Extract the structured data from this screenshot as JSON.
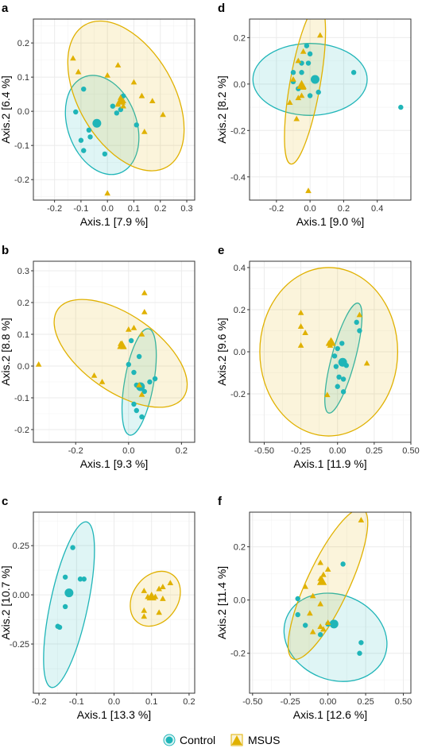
{
  "colors": {
    "control": "#1fb5b8",
    "msus": "#e0b100",
    "grid": "#ebebeb",
    "frame": "#333333"
  },
  "legend": {
    "position": "bottom",
    "items": [
      {
        "label": "Control",
        "shape": "circle"
      },
      {
        "label": "MSUS",
        "shape": "triangle"
      }
    ]
  },
  "chart_data": [
    {
      "type": "scatter",
      "panel_label": "a",
      "xlabel": "Axis.1 [7.9 %]",
      "ylabel": "Axis.2 [6.4 %]",
      "xlim": [
        -0.28,
        0.33
      ],
      "ylim": [
        -0.26,
        0.27
      ],
      "xticks": [
        -0.2,
        -0.1,
        0.0,
        0.1,
        0.2,
        0.3
      ],
      "xticklabels": [
        "-0.2",
        "-0.1",
        "0.0",
        "0.1",
        "0.2",
        "0.3"
      ],
      "yticks": [
        -0.2,
        -0.1,
        0.0,
        0.1,
        0.2
      ],
      "yticklabels": [
        "-0.2",
        "-0.1",
        "0.0",
        "0.1",
        "0.2"
      ],
      "series": [
        {
          "name": "Control",
          "points": [
            [
              -0.12,
              -0.002
            ],
            [
              -0.09,
              0.065
            ],
            [
              -0.1,
              -0.085
            ],
            [
              -0.09,
              -0.115
            ],
            [
              -0.07,
              -0.055
            ],
            [
              -0.01,
              -0.125
            ],
            [
              0.02,
              0.015
            ],
            [
              0.05,
              0.005
            ],
            [
              0.06,
              0.045
            ],
            [
              0.035,
              -0.005
            ],
            [
              0.11,
              -0.04
            ],
            [
              -0.065,
              -0.075
            ]
          ],
          "centroid": [
            -0.04,
            -0.035
          ],
          "ellipse": {
            "center": [
              -0.02,
              -0.04
            ],
            "rx": 0.13,
            "ry": 0.15,
            "angle_deg": -20
          }
        },
        {
          "name": "MSUS",
          "points": [
            [
              -0.13,
              0.155
            ],
            [
              -0.11,
              0.115
            ],
            [
              -0.0,
              0.105
            ],
            [
              0.04,
              0.135
            ],
            [
              0.1,
              0.085
            ],
            [
              0.13,
              0.045
            ],
            [
              0.17,
              0.03
            ],
            [
              0.21,
              -0.01
            ],
            [
              0.14,
              -0.06
            ],
            [
              0.06,
              0.03
            ],
            [
              0.05,
              0.04
            ],
            [
              0.04,
              0.02
            ],
            [
              0.06,
              0.015
            ],
            [
              -0.0,
              -0.24
            ]
          ],
          "centroid": [
            0.05,
            0.03
          ],
          "ellipse": {
            "center": [
              0.07,
              0.045
            ],
            "rx": 0.18,
            "ry": 0.24,
            "angle_deg": -30
          }
        }
      ]
    },
    {
      "type": "scatter",
      "panel_label": "d",
      "xlabel": "Axis.1 [9.0 %]",
      "ylabel": "Axis.2 [8.2 %]",
      "xlim": [
        -0.36,
        0.6
      ],
      "ylim": [
        -0.5,
        0.28
      ],
      "xticks": [
        -0.2,
        0.0,
        0.2,
        0.4
      ],
      "xticklabels": [
        "-0.2",
        "0.0",
        "0.2",
        "0.4"
      ],
      "yticks": [
        -0.4,
        -0.2,
        0.0,
        0.2
      ],
      "yticklabels": [
        "-0.4",
        "-0.2",
        "0.0",
        "0.2"
      ],
      "series": [
        {
          "name": "Control",
          "points": [
            [
              -0.02,
              0.165
            ],
            [
              0.0,
              0.13
            ],
            [
              -0.05,
              0.09
            ],
            [
              -0.01,
              0.09
            ],
            [
              -0.1,
              0.05
            ],
            [
              -0.05,
              0.05
            ],
            [
              -0.07,
              -0.02
            ],
            [
              -0.1,
              0.01
            ],
            [
              0.0,
              -0.05
            ],
            [
              0.05,
              -0.035
            ],
            [
              0.26,
              0.05
            ],
            [
              0.54,
              -0.1
            ]
          ],
          "centroid": [
            0.03,
            0.02
          ],
          "ellipse": {
            "center": [
              0.0,
              0.02
            ],
            "rx": 0.34,
            "ry": 0.155,
            "angle_deg": 0
          }
        },
        {
          "name": "MSUS",
          "points": [
            [
              0.06,
              0.21
            ],
            [
              -0.04,
              0.14
            ],
            [
              -0.07,
              0.1
            ],
            [
              -0.1,
              0.02
            ],
            [
              -0.05,
              0.0
            ],
            [
              -0.04,
              -0.01
            ],
            [
              -0.04,
              -0.015
            ],
            [
              -0.07,
              -0.06
            ],
            [
              -0.05,
              -0.05
            ],
            [
              -0.12,
              -0.08
            ],
            [
              -0.08,
              -0.15
            ],
            [
              -0.01,
              -0.46
            ]
          ],
          "centroid": [
            -0.05,
            -0.005
          ],
          "ellipse": {
            "center": [
              -0.03,
              0.0
            ],
            "rx": 0.09,
            "ry": 0.35,
            "angle_deg": 10
          }
        }
      ]
    },
    {
      "type": "scatter",
      "panel_label": "b",
      "xlabel": "Axis.1 [9.3 %]",
      "ylabel": "Axis.2 [8.8 %]",
      "xlim": [
        -0.36,
        0.25
      ],
      "ylim": [
        -0.24,
        0.33
      ],
      "xticks": [
        -0.2,
        0.0,
        0.2
      ],
      "xticklabels": [
        "-0.2",
        "0.0",
        "0.2"
      ],
      "yticks": [
        -0.2,
        -0.1,
        0.0,
        0.1,
        0.2,
        0.3
      ],
      "yticklabels": [
        "-0.2",
        "-0.1",
        "0.0",
        "0.1",
        "0.2",
        "0.3"
      ],
      "series": [
        {
          "name": "Control",
          "points": [
            [
              0.01,
              0.08
            ],
            [
              0.04,
              0.03
            ],
            [
              0.0,
              0.005
            ],
            [
              0.02,
              -0.02
            ],
            [
              0.03,
              -0.06
            ],
            [
              0.08,
              -0.05
            ],
            [
              0.1,
              -0.04
            ],
            [
              0.06,
              -0.08
            ],
            [
              0.02,
              -0.12
            ],
            [
              0.03,
              -0.14
            ],
            [
              0.05,
              -0.16
            ]
          ],
          "centroid": [
            0.045,
            -0.065
          ],
          "ellipse": {
            "center": [
              0.04,
              -0.05
            ],
            "rx": 0.055,
            "ry": 0.17,
            "angle_deg": 10
          }
        },
        {
          "name": "MSUS",
          "points": [
            [
              -0.34,
              0.005
            ],
            [
              -0.13,
              -0.03
            ],
            [
              -0.1,
              -0.05
            ],
            [
              -0.03,
              0.07
            ],
            [
              -0.02,
              0.06
            ],
            [
              0.0,
              0.115
            ],
            [
              0.02,
              0.12
            ],
            [
              0.05,
              0.1
            ],
            [
              0.06,
              0.17
            ],
            [
              0.06,
              0.23
            ],
            [
              0.04,
              -0.06
            ],
            [
              0.05,
              -0.09
            ]
          ],
          "centroid": [
            -0.025,
            0.065
          ],
          "ellipse": {
            "center": [
              -0.03,
              0.04
            ],
            "rx": 0.29,
            "ry": 0.12,
            "angle_deg": 35
          }
        }
      ]
    },
    {
      "type": "scatter",
      "panel_label": "e",
      "xlabel": "Axis.1 [11.9 %]",
      "ylabel": "Axis.2 [9.6 %]",
      "xlim": [
        -0.6,
        0.5
      ],
      "ylim": [
        -0.43,
        0.43
      ],
      "xticks": [
        -0.5,
        -0.25,
        0.0,
        0.25,
        0.5
      ],
      "xticklabels": [
        "-0.50",
        "-0.25",
        "0.00",
        "0.25",
        "0.50"
      ],
      "yticks": [
        -0.2,
        0.0,
        0.2,
        0.4
      ],
      "yticklabels": [
        "-0.2",
        "0.0",
        "0.2",
        "0.4"
      ],
      "series": [
        {
          "name": "Control",
          "points": [
            [
              0.13,
              0.14
            ],
            [
              0.15,
              0.1
            ],
            [
              0.03,
              0.04
            ],
            [
              0.0,
              0.015
            ],
            [
              -0.02,
              -0.02
            ],
            [
              0.03,
              -0.055
            ],
            [
              0.06,
              -0.065
            ],
            [
              -0.01,
              -0.07
            ],
            [
              0.01,
              -0.12
            ],
            [
              0.04,
              -0.13
            ],
            [
              0.0,
              -0.165
            ],
            [
              0.04,
              -0.19
            ]
          ],
          "centroid": [
            0.035,
            -0.05
          ],
          "ellipse": {
            "center": [
              0.04,
              -0.03
            ],
            "rx": 0.08,
            "ry": 0.27,
            "angle_deg": 15
          }
        },
        {
          "name": "MSUS",
          "points": [
            [
              -0.25,
              0.185
            ],
            [
              -0.25,
              0.12
            ],
            [
              -0.22,
              0.09
            ],
            [
              -0.25,
              0.03
            ],
            [
              -0.06,
              0.04
            ],
            [
              -0.04,
              0.05
            ],
            [
              -0.05,
              0.03
            ],
            [
              0.15,
              0.175
            ],
            [
              0.2,
              -0.055
            ],
            [
              -0.07,
              -0.205
            ]
          ],
          "centroid": [
            -0.045,
            0.045
          ],
          "ellipse": {
            "center": [
              -0.06,
              0.0
            ],
            "rx": 0.47,
            "ry": 0.4,
            "angle_deg": 0
          }
        }
      ]
    },
    {
      "type": "scatter",
      "panel_label": "c",
      "xlabel": "Axis.1 [13.3 %]",
      "ylabel": "Axis.2 [10.7 %]",
      "xlim": [
        -0.215,
        0.215
      ],
      "ylim": [
        -0.5,
        0.42
      ],
      "xticks": [
        -0.2,
        -0.1,
        0.0,
        0.1,
        0.2
      ],
      "xticklabels": [
        "-0.2",
        "-0.1",
        "0.0",
        "0.1",
        "0.2"
      ],
      "yticks": [
        -0.25,
        0.0,
        0.25
      ],
      "yticklabels": [
        "-0.25",
        "0.00",
        "0.25"
      ],
      "series": [
        {
          "name": "Control",
          "points": [
            [
              -0.11,
              0.24
            ],
            [
              -0.13,
              0.09
            ],
            [
              -0.09,
              0.08
            ],
            [
              -0.08,
              0.08
            ],
            [
              -0.13,
              -0.06
            ],
            [
              -0.15,
              -0.16
            ],
            [
              -0.145,
              -0.165
            ]
          ],
          "centroid": [
            -0.12,
            0.01
          ],
          "ellipse": {
            "center": [
              -0.12,
              -0.05
            ],
            "rx": 0.05,
            "ry": 0.43,
            "angle_deg": 12
          }
        },
        {
          "name": "MSUS",
          "points": [
            [
              0.08,
              0.02
            ],
            [
              0.12,
              0.03
            ],
            [
              0.13,
              0.04
            ],
            [
              0.15,
              0.06
            ],
            [
              0.09,
              -0.01
            ],
            [
              0.11,
              -0.01
            ],
            [
              0.13,
              -0.02
            ],
            [
              0.08,
              -0.08
            ],
            [
              0.12,
              -0.09
            ],
            [
              0.08,
              -0.11
            ]
          ],
          "centroid": [
            0.1,
            -0.01
          ],
          "ellipse": {
            "center": [
              0.11,
              -0.02
            ],
            "rx": 0.06,
            "ry": 0.15,
            "angle_deg": 35
          }
        }
      ]
    },
    {
      "type": "scatter",
      "panel_label": "f",
      "xlabel": "Axis.1 [12.6 %]",
      "ylabel": "Axis.2 [11.4 %]",
      "xlim": [
        -0.52,
        0.55
      ],
      "ylim": [
        -0.35,
        0.33
      ],
      "xticks": [
        -0.5,
        -0.25,
        0.0,
        0.25,
        0.5
      ],
      "xticklabels": [
        "-0.50",
        "-0.25",
        "0.00",
        "0.25",
        "0.50"
      ],
      "yticks": [
        -0.2,
        0.0,
        0.2
      ],
      "yticklabels": [
        "-0.2",
        "0.0",
        "0.2"
      ],
      "series": [
        {
          "name": "Control",
          "points": [
            [
              0.1,
              0.135
            ],
            [
              -0.2,
              0.005
            ],
            [
              -0.2,
              -0.055
            ],
            [
              -0.15,
              -0.095
            ],
            [
              -0.05,
              -0.13
            ],
            [
              0.0,
              -0.09
            ],
            [
              0.05,
              -0.09
            ],
            [
              0.04,
              -0.095
            ],
            [
              0.22,
              -0.16
            ],
            [
              0.21,
              -0.2
            ]
          ],
          "centroid": [
            0.04,
            -0.09
          ],
          "ellipse": {
            "center": [
              0.05,
              -0.14
            ],
            "rx": 0.35,
            "ry": 0.16,
            "angle_deg": 22
          }
        },
        {
          "name": "MSUS",
          "points": [
            [
              0.22,
              0.3
            ],
            [
              -0.05,
              0.14
            ],
            [
              0.0,
              0.115
            ],
            [
              -0.03,
              0.095
            ],
            [
              -0.05,
              0.08
            ],
            [
              -0.15,
              0.05
            ],
            [
              -0.1,
              0.015
            ],
            [
              -0.05,
              -0.015
            ],
            [
              -0.12,
              -0.05
            ],
            [
              -0.05,
              -0.1
            ],
            [
              0.0,
              -0.085
            ],
            [
              -0.03,
              -0.11
            ],
            [
              -0.1,
              -0.12
            ]
          ],
          "centroid": [
            -0.04,
            0.07
          ],
          "ellipse": {
            "center": [
              0.0,
              0.06
            ],
            "rx": 0.14,
            "ry": 0.31,
            "angle_deg": 25
          }
        }
      ]
    }
  ]
}
